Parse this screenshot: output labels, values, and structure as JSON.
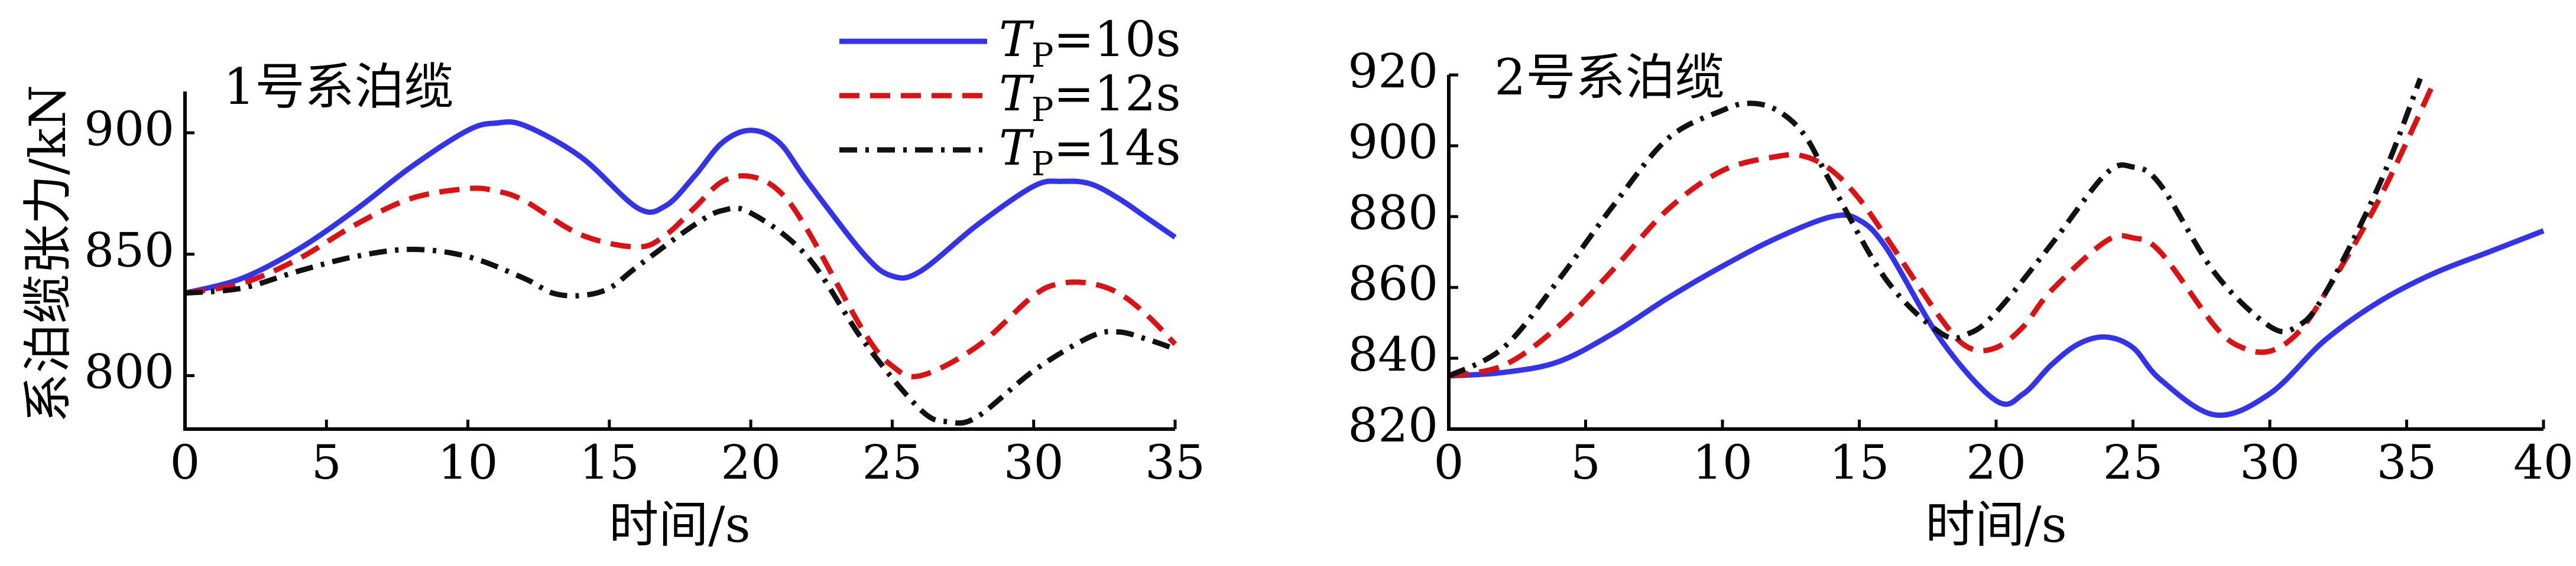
{
  "figure": {
    "ylabel": "系泊缆张力/kN"
  },
  "legend": {
    "entries": [
      {
        "prefix": "T",
        "sub": "P",
        "suffix": "=10s",
        "color": "#3333ee",
        "dash": "solid"
      },
      {
        "prefix": "T",
        "sub": "P",
        "suffix": "=12s",
        "color": "#dd1111",
        "dash": "dashed"
      },
      {
        "prefix": "T",
        "sub": "P",
        "suffix": "=14s",
        "color": "#111111",
        "dash": "dashdot"
      }
    ]
  },
  "chart_data": [
    {
      "type": "line",
      "title": "1号系泊缆",
      "xlabel": "时间/s",
      "ylabel": "系泊缆张力/kN",
      "xlim": [
        0,
        35
      ],
      "ylim": [
        778,
        917
      ],
      "xticks": [
        0,
        5,
        10,
        15,
        20,
        25,
        30,
        35
      ],
      "yticks": [
        800,
        850,
        900
      ],
      "series": [
        {
          "name": "TP=10s",
          "color": "#3333ee",
          "x": [
            0,
            2,
            4,
            6,
            8,
            10,
            11,
            12,
            14,
            16,
            17,
            18,
            19,
            20,
            21,
            22,
            24,
            25,
            26,
            28,
            30,
            31,
            32,
            33,
            34,
            35
          ],
          "y": [
            834,
            840,
            852,
            868,
            886,
            901,
            904,
            903,
            890,
            869,
            870,
            882,
            896,
            901,
            896,
            880,
            850,
            841,
            843,
            862,
            878,
            880,
            879,
            873,
            865,
            857
          ]
        },
        {
          "name": "TP=12s",
          "color": "#dd1111",
          "x": [
            0,
            2,
            4,
            6,
            8,
            10,
            11,
            12,
            14,
            16,
            17,
            18,
            19,
            20,
            21,
            22,
            24,
            25,
            26,
            28,
            30,
            31,
            32,
            33,
            34,
            35
          ],
          "y": [
            834,
            838,
            848,
            862,
            873,
            877,
            876,
            872,
            858,
            853,
            858,
            869,
            880,
            882,
            876,
            860,
            818,
            804,
            800,
            812,
            833,
            838,
            838,
            834,
            825,
            813
          ]
        },
        {
          "name": "TP=14s",
          "color": "#111111",
          "x": [
            0,
            2,
            4,
            6,
            8,
            10,
            12,
            13,
            14,
            15,
            16,
            18,
            19,
            20,
            22,
            24,
            26,
            27,
            28,
            30,
            32,
            33,
            34,
            35
          ],
          "y": [
            834,
            836,
            843,
            849,
            852,
            849,
            840,
            834,
            833,
            836,
            845,
            862,
            868,
            867,
            849,
            814,
            786,
            781,
            783,
            802,
            816,
            818,
            815,
            811
          ]
        }
      ]
    },
    {
      "type": "line",
      "title": "2号系泊缆",
      "xlabel": "时间/s",
      "ylabel": "",
      "xlim": [
        0,
        40
      ],
      "ylim": [
        820,
        920
      ],
      "xticks": [
        0,
        5,
        10,
        15,
        20,
        25,
        30,
        35,
        40
      ],
      "yticks": [
        820,
        840,
        860,
        880,
        900,
        920
      ],
      "series": [
        {
          "name": "TP=10s",
          "color": "#3333ee",
          "x": [
            0,
            2,
            4,
            6,
            8,
            10,
            12,
            14,
            15,
            16,
            18,
            20,
            21,
            22,
            23,
            24,
            25,
            26,
            28,
            30,
            32,
            34,
            36,
            38,
            40
          ],
          "y": [
            835,
            836,
            839,
            847,
            857,
            866,
            874,
            880,
            879,
            871,
            845,
            828,
            830,
            838,
            844,
            846,
            843,
            834,
            824,
            830,
            845,
            856,
            864,
            870,
            876
          ]
        },
        {
          "name": "TP=12s",
          "color": "#dd1111",
          "x": [
            0,
            2,
            4,
            6,
            8,
            10,
            12,
            13,
            14,
            15,
            16,
            18,
            19,
            20,
            21,
            22,
            24,
            25,
            26,
            28,
            29,
            30,
            31,
            32,
            34,
            36
          ],
          "y": [
            835,
            838,
            849,
            865,
            882,
            893,
            897,
            897,
            893,
            885,
            874,
            851,
            843,
            843,
            849,
            859,
            873,
            874,
            870,
            849,
            843,
            842,
            847,
            858,
            885,
            918
          ]
        },
        {
          "name": "TP=14s",
          "color": "#111111",
          "x": [
            0,
            2,
            4,
            6,
            8,
            10,
            11,
            12,
            13,
            14,
            16,
            18,
            19,
            20,
            22,
            24,
            25,
            26,
            28,
            30,
            31,
            32,
            34,
            35.5
          ],
          "y": [
            835,
            843,
            862,
            883,
            902,
            910,
            912,
            910,
            903,
            889,
            862,
            847,
            847,
            853,
            872,
            892,
            894,
            889,
            864,
            849,
            849,
            858,
            889,
            919
          ]
        }
      ]
    }
  ]
}
